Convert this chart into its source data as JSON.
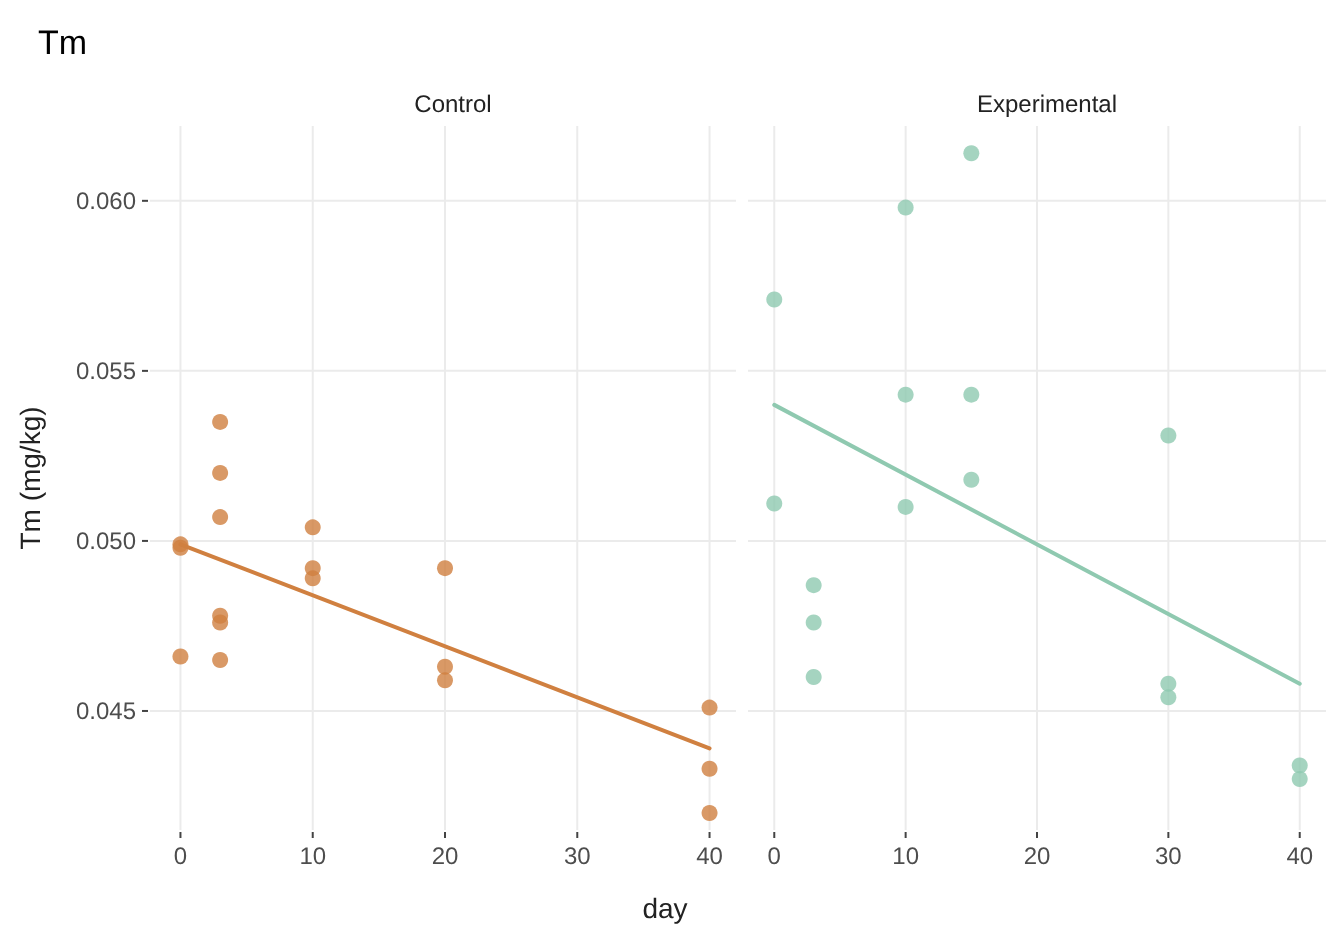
{
  "chart_data": [
    {
      "type": "scatter",
      "title": "Tm",
      "subtitle": "Control",
      "xlabel": "day",
      "ylabel": "Tm (mg/kg)",
      "xlim": [
        -2,
        42
      ],
      "xticks": [
        0,
        10,
        20,
        30,
        40
      ],
      "ylim": [
        0.0415,
        0.0622
      ],
      "yticks": [
        0.045,
        {
          "value": 0.05,
          "label": "0.050"
        },
        0.055,
        {
          "value": 0.06,
          "label": "0.060"
        }
      ],
      "grid": true,
      "series": [
        {
          "type": "scatter",
          "marker": "circle",
          "color": "#d08040",
          "x": [
            0,
            0,
            0,
            3,
            3,
            3,
            3,
            3,
            3,
            10,
            10,
            10,
            20,
            20,
            20,
            40,
            40,
            40
          ],
          "values": [
            0.0499,
            0.0498,
            0.0466,
            0.0535,
            0.052,
            0.0507,
            0.0478,
            0.0476,
            0.0465,
            0.0504,
            0.0492,
            0.0489,
            0.0492,
            0.0463,
            0.0459,
            0.0451,
            0.0433,
            0.042
          ]
        },
        {
          "type": "line",
          "marker": "none",
          "color": "#d08040",
          "line_style": "solid",
          "x": [
            0,
            40
          ],
          "values": [
            0.0499,
            0.0439
          ]
        }
      ]
    },
    {
      "type": "scatter",
      "subtitle": "Experimental",
      "xlim": [
        -2,
        42
      ],
      "xticks": [
        0,
        10,
        20,
        30,
        40
      ],
      "ylim": [
        0.0415,
        0.0622
      ],
      "yticks": [
        0.045,
        0.05,
        0.055,
        0.06
      ],
      "grid": true,
      "tick_labels": "x",
      "series": [
        {
          "type": "scatter",
          "marker": "circle",
          "color": "#8fc9b0",
          "x": [
            0,
            0,
            3,
            3,
            3,
            10,
            10,
            10,
            15,
            15,
            15,
            30,
            30,
            30,
            40,
            40
          ],
          "values": [
            0.0571,
            0.0511,
            0.0487,
            0.0476,
            0.046,
            0.0598,
            0.0543,
            0.051,
            0.0614,
            0.0543,
            0.0518,
            0.0531,
            0.0458,
            0.0454,
            0.0434,
            0.043
          ]
        },
        {
          "type": "line",
          "marker": "none",
          "color": "#8fc9b0",
          "line_style": "solid",
          "x": [
            0,
            40
          ],
          "values": [
            0.054,
            0.0458
          ]
        }
      ]
    }
  ]
}
